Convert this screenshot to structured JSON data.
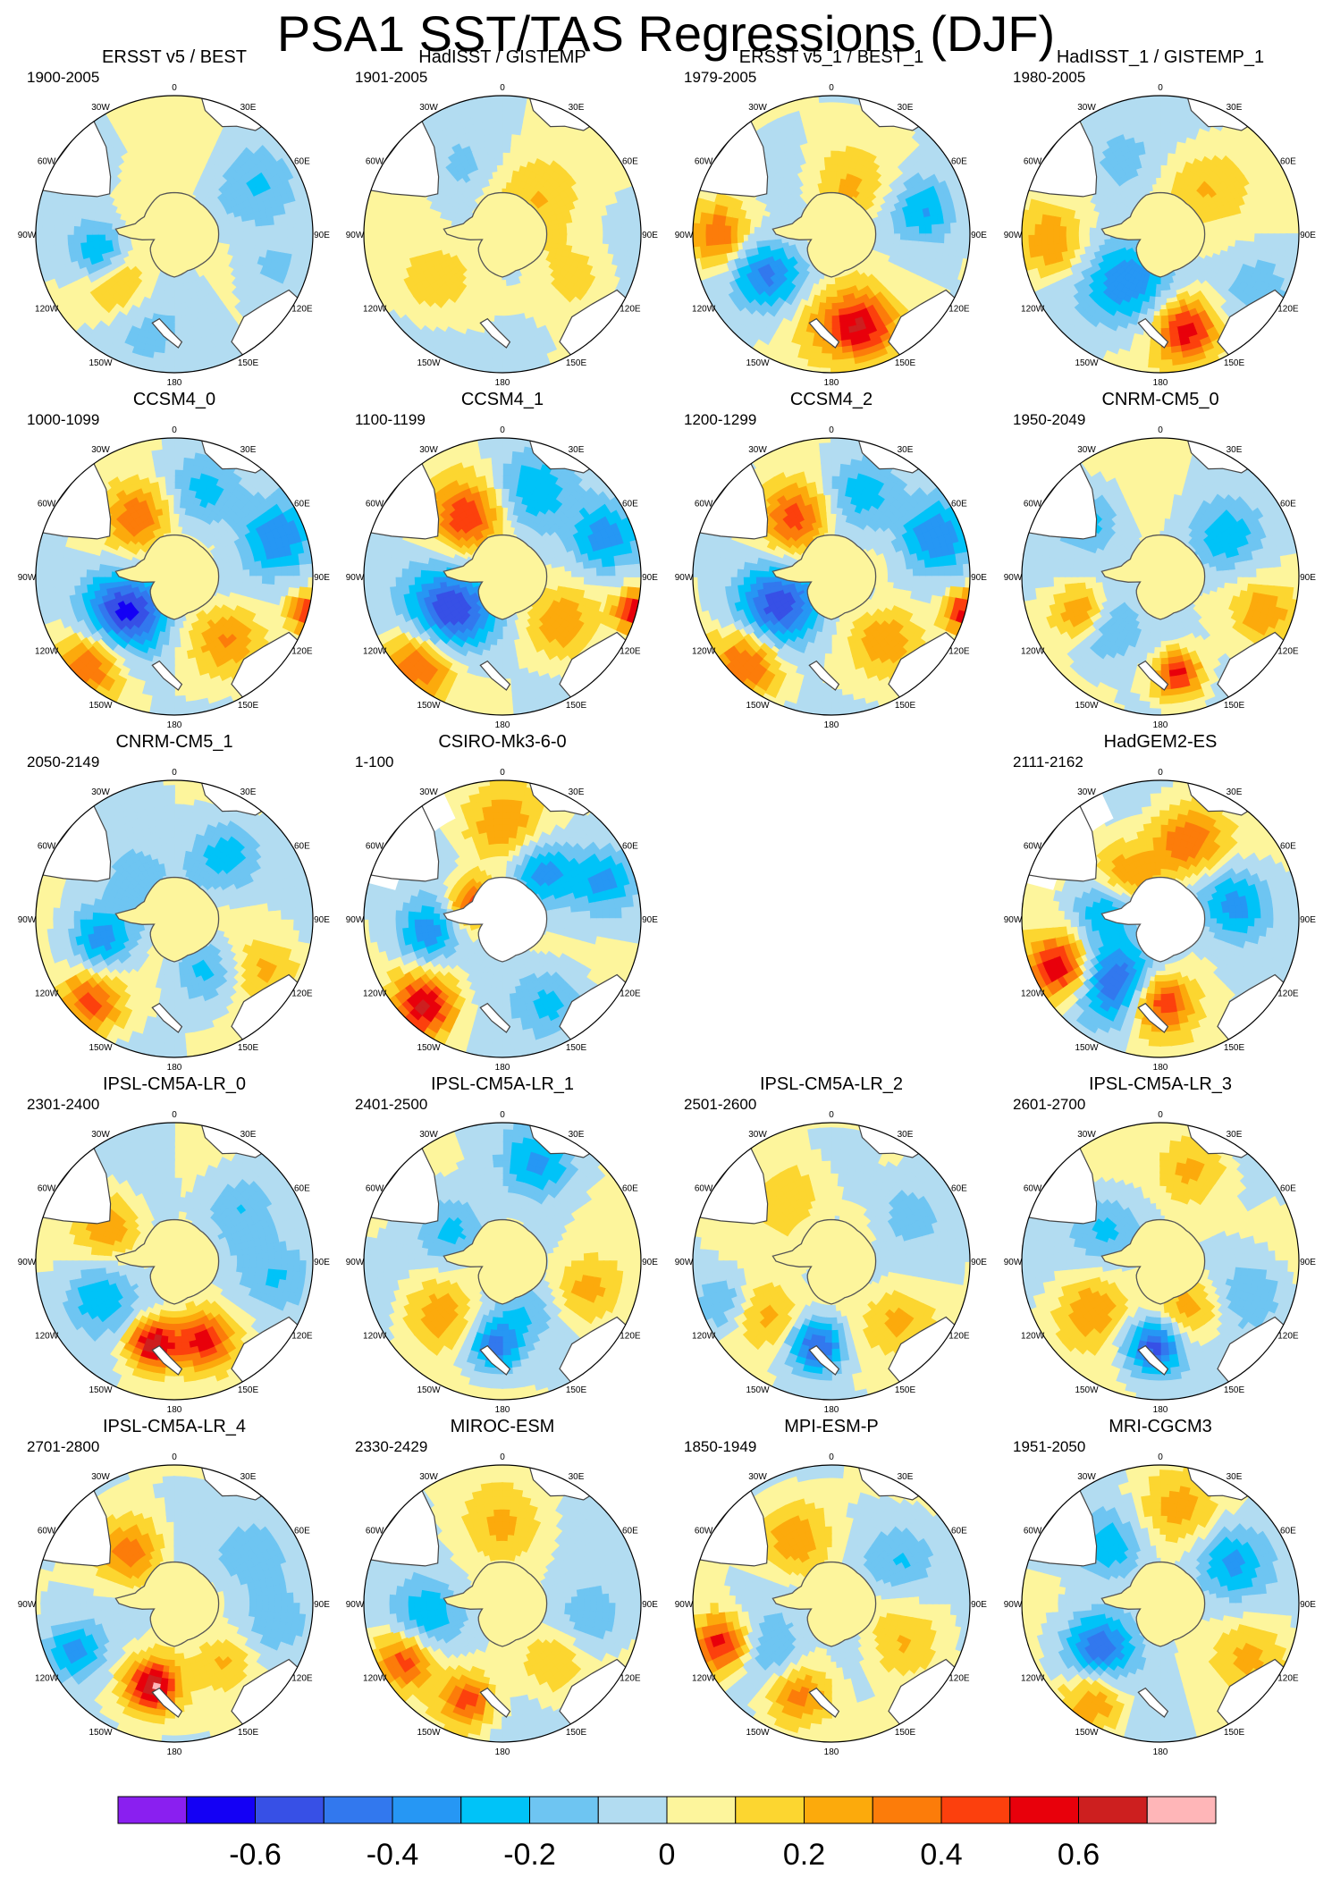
{
  "title": "PSA1 SST/TAS Regressions (DJF)",
  "chart_data": {
    "type": "heatmap",
    "projection": "south-polar-stereographic",
    "variable": "SST/TAS regression on PSA1 index",
    "season": "DJF",
    "panel_grid": {
      "rows": 5,
      "cols": 4
    },
    "lon_labels": [
      "0",
      "30E",
      "60E",
      "90E",
      "120E",
      "150E",
      "180",
      "150W",
      "120W",
      "90W",
      "60W",
      "30W"
    ],
    "colorbar": {
      "colors": [
        "#8a1ff0",
        "#1400f5",
        "#3750e6",
        "#3278ee",
        "#2697f4",
        "#00c3f8",
        "#6ec5f2",
        "#b2dcf1",
        "#fdf59c",
        "#fcd630",
        "#fcaa0c",
        "#fc7c0a",
        "#fc400d",
        "#e8000b",
        "#cd1f1f",
        "#ffb6b8"
      ],
      "tick_labels": [
        "-0.6",
        "-0.4",
        "-0.2",
        "0",
        "0.2",
        "0.4",
        "0.6"
      ],
      "tick_values": [
        -0.6,
        -0.4,
        -0.2,
        0,
        0.2,
        0.4,
        0.6
      ],
      "interval": 0.1
    },
    "panels": [
      {
        "title": "ERSST v5 / BEST",
        "period": "1900-2005",
        "row": 0,
        "col": 0,
        "missing_sector": false,
        "anomalies": [
          [
            255,
            0.55,
            -0.4,
            0.16
          ],
          [
            232,
            0.55,
            0.28,
            0.17
          ],
          [
            60,
            0.72,
            -0.18,
            0.2
          ],
          [
            200,
            0.75,
            -0.12,
            0.22
          ],
          [
            300,
            0.3,
            0.12,
            0.18
          ],
          [
            110,
            0.75,
            -0.15,
            0.18
          ]
        ]
      },
      {
        "title": "HadISST / GISTEMP",
        "period": "1901-2005",
        "row": 0,
        "col": 1,
        "missing_sector": false,
        "anomalies": [
          [
            45,
            0.35,
            0.22,
            0.2
          ],
          [
            235,
            0.6,
            0.18,
            0.2
          ],
          [
            120,
            0.6,
            0.15,
            0.18
          ],
          [
            330,
            0.55,
            -0.12,
            0.16
          ],
          [
            170,
            0.85,
            -0.12,
            0.14
          ]
        ]
      },
      {
        "title": "ERSST v5_1 / BEST_1",
        "period": "1979-2005",
        "row": 0,
        "col": 2,
        "missing_sector": false,
        "anomalies": [
          [
            240,
            0.55,
            -0.45,
            0.18
          ],
          [
            270,
            0.82,
            0.38,
            0.16
          ],
          [
            160,
            0.72,
            0.45,
            0.16
          ],
          [
            75,
            0.7,
            -0.28,
            0.16
          ],
          [
            20,
            0.35,
            0.18,
            0.2
          ],
          [
            180,
            0.65,
            0.3,
            0.2
          ]
        ]
      },
      {
        "title": "HadISST_1 / GISTEMP_1",
        "period": "1980-2005",
        "row": 0,
        "col": 3,
        "missing_sector": false,
        "anomalies": [
          [
            215,
            0.42,
            -0.4,
            0.22
          ],
          [
            265,
            0.8,
            0.32,
            0.18
          ],
          [
            165,
            0.72,
            0.55,
            0.16
          ],
          [
            45,
            0.45,
            0.2,
            0.2
          ],
          [
            330,
            0.6,
            -0.15,
            0.18
          ],
          [
            120,
            0.8,
            -0.15,
            0.15
          ]
        ]
      },
      {
        "title": "CCSM4_0",
        "period": "1000-1099",
        "row": 1,
        "col": 0,
        "missing_sector": false,
        "anomalies": [
          [
            235,
            0.45,
            -0.62,
            0.22
          ],
          [
            225,
            0.85,
            0.45,
            0.18
          ],
          [
            330,
            0.5,
            0.42,
            0.18
          ],
          [
            70,
            0.8,
            -0.4,
            0.18
          ],
          [
            105,
            1.0,
            0.45,
            0.1
          ],
          [
            140,
            0.6,
            0.3,
            0.18
          ],
          [
            20,
            0.65,
            -0.25,
            0.2
          ]
        ]
      },
      {
        "title": "CCSM4_1",
        "period": "1100-1199",
        "row": 1,
        "col": 1,
        "missing_sector": false,
        "anomalies": [
          [
            235,
            0.45,
            -0.62,
            0.22
          ],
          [
            225,
            0.85,
            0.45,
            0.18
          ],
          [
            330,
            0.5,
            0.48,
            0.18
          ],
          [
            70,
            0.8,
            -0.4,
            0.18
          ],
          [
            105,
            1.0,
            0.62,
            0.1
          ],
          [
            130,
            0.55,
            0.32,
            0.18
          ],
          [
            20,
            0.65,
            -0.25,
            0.2
          ]
        ]
      },
      {
        "title": "CCSM4_2",
        "period": "1200-1299",
        "row": 1,
        "col": 2,
        "missing_sector": false,
        "anomalies": [
          [
            240,
            0.45,
            -0.55,
            0.22
          ],
          [
            225,
            0.85,
            0.45,
            0.18
          ],
          [
            330,
            0.5,
            0.45,
            0.18
          ],
          [
            70,
            0.8,
            -0.4,
            0.18
          ],
          [
            105,
            1.0,
            0.55,
            0.1
          ],
          [
            140,
            0.6,
            0.3,
            0.18
          ],
          [
            20,
            0.65,
            -0.25,
            0.2
          ]
        ]
      },
      {
        "title": "CNRM-CM5_0",
        "period": "1950-2049",
        "row": 1,
        "col": 3,
        "missing_sector": false,
        "anomalies": [
          [
            245,
            0.62,
            0.48,
            0.14
          ],
          [
            230,
            0.55,
            -0.35,
            0.18
          ],
          [
            170,
            0.72,
            0.58,
            0.12
          ],
          [
            60,
            0.55,
            -0.25,
            0.18
          ],
          [
            310,
            0.65,
            -0.22,
            0.15
          ],
          [
            110,
            0.8,
            0.25,
            0.15
          ]
        ]
      },
      {
        "title": "CNRM-CM5_1",
        "period": "2050-2149",
        "row": 2,
        "col": 0,
        "missing_sector": false,
        "anomalies": [
          [
            225,
            0.85,
            0.45,
            0.16
          ],
          [
            255,
            0.55,
            -0.35,
            0.16
          ],
          [
            40,
            0.6,
            -0.25,
            0.18
          ],
          [
            120,
            0.75,
            0.22,
            0.18
          ],
          [
            320,
            0.4,
            -0.22,
            0.16
          ],
          [
            150,
            0.45,
            -0.2,
            0.16
          ]
        ]
      },
      {
        "title": "CSIRO-Mk3-6-0",
        "period": "1-100",
        "row": 2,
        "col": 1,
        "missing_sector": true,
        "anomalies": [
          [
            222,
            0.85,
            0.62,
            0.16
          ],
          [
            260,
            0.55,
            -0.4,
            0.16
          ],
          [
            300,
            0.25,
            0.45,
            0.12
          ],
          [
            40,
            0.45,
            -0.35,
            0.16
          ],
          [
            70,
            0.8,
            -0.3,
            0.16
          ],
          [
            150,
            0.7,
            -0.25,
            0.18
          ],
          [
            0,
            0.7,
            0.25,
            0.2
          ]
        ]
      },
      {
        "title": "HadGEM2-ES",
        "period": "2111-2162",
        "row": 2,
        "col": 3,
        "missing_sector": true,
        "anomalies": [
          [
            245,
            0.82,
            0.65,
            0.16
          ],
          [
            215,
            0.55,
            -0.55,
            0.2
          ],
          [
            180,
            0.6,
            0.55,
            0.16
          ],
          [
            20,
            0.6,
            0.4,
            0.18
          ],
          [
            80,
            0.55,
            -0.35,
            0.18
          ],
          [
            320,
            0.4,
            0.3,
            0.16
          ],
          [
            280,
            0.4,
            -0.3,
            0.16
          ]
        ]
      },
      {
        "title": "IPSL-CM5A-LR_0",
        "period": "2301-2400",
        "row": 3,
        "col": 0,
        "missing_sector": false,
        "anomalies": [
          [
            195,
            0.62,
            0.68,
            0.13
          ],
          [
            160,
            0.62,
            0.5,
            0.14
          ],
          [
            300,
            0.55,
            0.3,
            0.16
          ],
          [
            245,
            0.6,
            -0.3,
            0.18
          ],
          [
            50,
            0.6,
            -0.22,
            0.18
          ],
          [
            100,
            0.75,
            -0.18,
            0.18
          ]
        ]
      },
      {
        "title": "IPSL-CM5A-LR_1",
        "period": "2401-2500",
        "row": 3,
        "col": 1,
        "missing_sector": false,
        "anomalies": [
          [
            185,
            0.62,
            -0.45,
            0.14
          ],
          [
            230,
            0.6,
            0.28,
            0.18
          ],
          [
            20,
            0.75,
            -0.3,
            0.18
          ],
          [
            300,
            0.45,
            -0.22,
            0.18
          ],
          [
            110,
            0.65,
            0.25,
            0.18
          ],
          [
            150,
            0.4,
            -0.2,
            0.16
          ]
        ]
      },
      {
        "title": "IPSL-CM5A-LR_2",
        "period": "2501-2600",
        "row": 3,
        "col": 2,
        "missing_sector": false,
        "anomalies": [
          [
            190,
            0.62,
            -0.55,
            0.14
          ],
          [
            230,
            0.6,
            0.28,
            0.18
          ],
          [
            250,
            0.85,
            -0.22,
            0.14
          ],
          [
            60,
            0.65,
            -0.22,
            0.16
          ],
          [
            130,
            0.65,
            0.25,
            0.18
          ],
          [
            330,
            0.55,
            0.2,
            0.18
          ]
        ]
      },
      {
        "title": "IPSL-CM5A-LR_3",
        "period": "2601-2700",
        "row": 3,
        "col": 3,
        "missing_sector": false,
        "anomalies": [
          [
            185,
            0.62,
            -0.55,
            0.14
          ],
          [
            235,
            0.6,
            0.28,
            0.18
          ],
          [
            20,
            0.7,
            0.25,
            0.18
          ],
          [
            300,
            0.45,
            -0.22,
            0.18
          ],
          [
            110,
            0.7,
            -0.22,
            0.18
          ],
          [
            150,
            0.4,
            0.25,
            0.16
          ]
        ]
      },
      {
        "title": "IPSL-CM5A-LR_4",
        "period": "2701-2800",
        "row": 4,
        "col": 0,
        "missing_sector": false,
        "anomalies": [
          [
            195,
            0.62,
            0.68,
            0.13
          ],
          [
            245,
            0.8,
            -0.35,
            0.14
          ],
          [
            320,
            0.5,
            0.32,
            0.16
          ],
          [
            60,
            0.65,
            -0.22,
            0.18
          ],
          [
            140,
            0.55,
            0.25,
            0.16
          ],
          [
            100,
            0.75,
            -0.18,
            0.18
          ]
        ]
      },
      {
        "title": "MIROC-ESM",
        "period": "2330-2429",
        "row": 4,
        "col": 1,
        "missing_sector": false,
        "anomalies": [
          [
            240,
            0.82,
            0.42,
            0.14
          ],
          [
            200,
            0.75,
            0.45,
            0.14
          ],
          [
            260,
            0.55,
            -0.3,
            0.18
          ],
          [
            0,
            0.55,
            0.2,
            0.2
          ],
          [
            100,
            0.65,
            -0.2,
            0.18
          ],
          [
            140,
            0.55,
            0.2,
            0.16
          ]
        ]
      },
      {
        "title": "MPI-ESM-P",
        "period": "1850-1949",
        "row": 4,
        "col": 2,
        "missing_sector": false,
        "anomalies": [
          [
            250,
            0.85,
            0.55,
            0.14
          ],
          [
            200,
            0.7,
            0.35,
            0.16
          ],
          [
            230,
            0.55,
            -0.25,
            0.18
          ],
          [
            330,
            0.55,
            0.25,
            0.18
          ],
          [
            60,
            0.6,
            -0.2,
            0.18
          ],
          [
            120,
            0.6,
            0.2,
            0.18
          ]
        ]
      },
      {
        "title": "MRI-CGCM3",
        "period": "1951-2050",
        "row": 4,
        "col": 3,
        "missing_sector": false,
        "anomalies": [
          [
            235,
            0.55,
            -0.5,
            0.18
          ],
          [
            215,
            0.85,
            0.35,
            0.16
          ],
          [
            60,
            0.6,
            -0.3,
            0.18
          ],
          [
            320,
            0.55,
            -0.25,
            0.16
          ],
          [
            10,
            0.7,
            0.22,
            0.18
          ],
          [
            120,
            0.75,
            0.2,
            0.18
          ]
        ]
      }
    ]
  }
}
